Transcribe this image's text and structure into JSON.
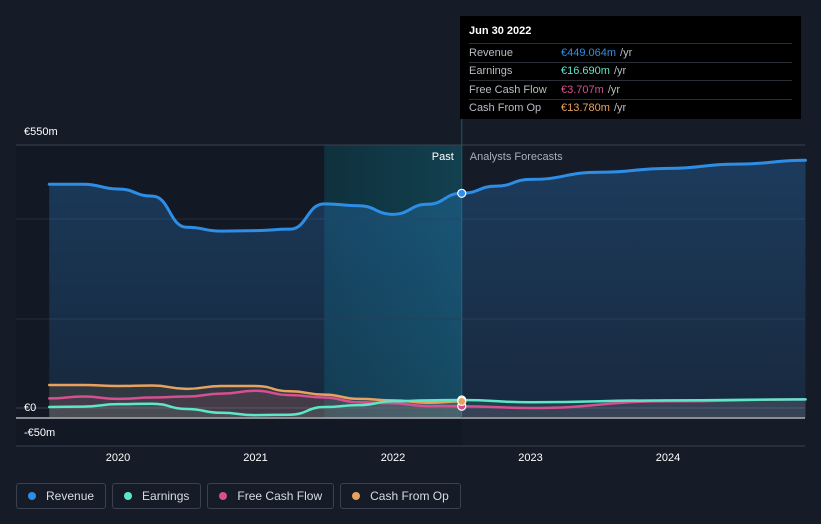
{
  "chart_data": {
    "type": "line",
    "ylim": [
      -50,
      550
    ],
    "y_tick_labels": [
      "€550m",
      "€0",
      "-€50m"
    ],
    "x_tick_labels": [
      "2020",
      "2021",
      "2022",
      "2023",
      "2024"
    ],
    "divider_labels": {
      "past": "Past",
      "forecast": "Analysts Forecasts"
    },
    "series": [
      {
        "name": "Revenue",
        "color": "#2e8ee6",
        "x": [
          2019.5,
          2019.75,
          2020.0,
          2020.25,
          2020.5,
          2020.75,
          2021.0,
          2021.25,
          2021.5,
          2021.75,
          2022.0,
          2022.25,
          2022.5,
          2022.75,
          2023.0,
          2023.5,
          2024.0,
          2024.5,
          2025.0
        ],
        "values": [
          468,
          468,
          458,
          443,
          378,
          370,
          371,
          374,
          427,
          423,
          405,
          426,
          449,
          464,
          478,
          493,
          501,
          510,
          518
        ]
      },
      {
        "name": "Earnings",
        "color": "#5ee6c8",
        "x": [
          2019.5,
          2019.75,
          2020.0,
          2020.25,
          2020.5,
          2020.75,
          2021.0,
          2021.25,
          2021.5,
          2021.75,
          2022.0,
          2022.25,
          2022.5,
          2023.0,
          2024.0,
          2025.0
        ],
        "values": [
          2,
          3,
          8,
          9,
          -2,
          -10,
          -15,
          -14,
          2,
          6,
          14,
          16,
          16.69,
          12,
          16,
          18
        ]
      },
      {
        "name": "Free Cash Flow",
        "color": "#d6508f",
        "x": [
          2019.5,
          2019.75,
          2020.0,
          2020.25,
          2020.5,
          2020.75,
          2021.0,
          2021.25,
          2021.5,
          2021.75,
          2022.0,
          2022.25,
          2022.5,
          2023.0,
          2024.0,
          2025.0
        ],
        "values": [
          20,
          24,
          19,
          22,
          24,
          30,
          36,
          27,
          22,
          12,
          10,
          4,
          3.707,
          0,
          14,
          18
        ]
      },
      {
        "name": "Cash From Op",
        "color": "#e8a25e",
        "x": [
          2019.5,
          2019.75,
          2020.0,
          2020.25,
          2020.5,
          2020.75,
          2021.0,
          2021.25,
          2021.5,
          2021.75,
          2022.0,
          2022.25,
          2022.5
        ],
        "values": [
          48,
          48,
          46,
          47,
          40,
          46,
          46,
          35,
          28,
          19,
          16,
          11,
          13.78
        ]
      }
    ],
    "forecast_start": 2022.5,
    "shaded_region": [
      2021.5,
      2022.5
    ]
  },
  "tooltip": {
    "date": "Jun 30 2022",
    "rows": [
      {
        "label": "Revenue",
        "value": "€449.064m",
        "unit": "/yr",
        "color": "#2e8ee6"
      },
      {
        "label": "Earnings",
        "value": "€16.690m",
        "unit": "/yr",
        "color": "#5ee6c8"
      },
      {
        "label": "Free Cash Flow",
        "value": "€3.707m",
        "unit": "/yr",
        "color": "#d6508f"
      },
      {
        "label": "Cash From Op",
        "value": "€13.780m",
        "unit": "/yr",
        "color": "#e8a25e"
      }
    ]
  },
  "legend": [
    {
      "label": "Revenue",
      "color": "#2e8ee6"
    },
    {
      "label": "Earnings",
      "color": "#5ee6c8"
    },
    {
      "label": "Free Cash Flow",
      "color": "#d6508f"
    },
    {
      "label": "Cash From Op",
      "color": "#e8a25e"
    }
  ]
}
